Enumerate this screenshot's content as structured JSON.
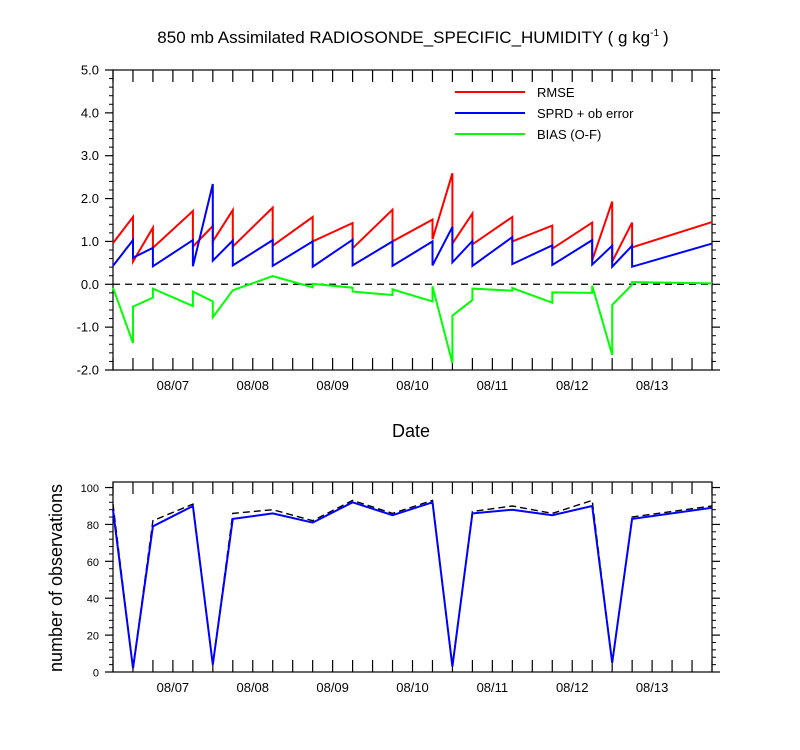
{
  "title": {
    "main": "850 mb Assimilated RADIOSONDE_SPECIFIC_HUMIDITY ( g kg",
    "exponent": "-1",
    "closing": ")"
  },
  "chart_data": [
    {
      "type": "line",
      "xlabel": "Date",
      "ylabel": "",
      "x_tick_labels": [
        "08/07",
        "08/08",
        "08/09",
        "08/10",
        "08/11",
        "08/12",
        "08/13"
      ],
      "x_tick_days": [
        7,
        8,
        9,
        10,
        11,
        12,
        13
      ],
      "xlim_days": [
        6.25,
        13.75
      ],
      "ylim": [
        -2.0,
        5.0
      ],
      "y_ticks": [
        -2.0,
        -1.0,
        0.0,
        1.0,
        2.0,
        3.0,
        4.0,
        5.0
      ],
      "y_tick_labels": [
        "-2.0",
        "-1.0",
        "0.0",
        "1.0",
        "2.0",
        "3.0",
        "4.0",
        "5.0"
      ],
      "zero_line": true,
      "legend_position": "top-right",
      "series": [
        {
          "name": "RMSE",
          "color": "#ff0000",
          "points": [
            [
              6.25,
              0.96
            ],
            [
              6.5,
              1.57
            ],
            [
              6.5,
              0.53
            ],
            [
              6.75,
              1.32
            ],
            [
              6.75,
              0.85
            ],
            [
              7.25,
              1.71
            ],
            [
              7.25,
              0.88
            ],
            [
              7.5,
              1.36
            ],
            [
              7.5,
              1.0
            ],
            [
              7.75,
              1.73
            ],
            [
              7.75,
              0.88
            ],
            [
              8.25,
              1.79
            ],
            [
              8.25,
              0.9
            ],
            [
              8.75,
              1.57
            ],
            [
              8.75,
              1.0
            ],
            [
              9.25,
              1.43
            ],
            [
              9.25,
              0.84
            ],
            [
              9.75,
              1.74
            ],
            [
              9.75,
              1.0
            ],
            [
              10.25,
              1.51
            ],
            [
              10.25,
              1.05
            ],
            [
              10.5,
              2.59
            ],
            [
              10.5,
              0.95
            ],
            [
              10.75,
              1.65
            ],
            [
              10.75,
              0.93
            ],
            [
              11.25,
              1.57
            ],
            [
              11.25,
              1.0
            ],
            [
              11.75,
              1.37
            ],
            [
              11.75,
              0.83
            ],
            [
              12.25,
              1.44
            ],
            [
              12.25,
              0.56
            ],
            [
              12.5,
              1.93
            ],
            [
              12.5,
              0.53
            ],
            [
              12.75,
              1.44
            ],
            [
              12.75,
              0.86
            ],
            [
              13.75,
              1.45
            ]
          ]
        },
        {
          "name": "SPRD + ob error",
          "color": "#0000ff",
          "points": [
            [
              6.25,
              0.43
            ],
            [
              6.5,
              1.03
            ],
            [
              6.5,
              0.62
            ],
            [
              6.75,
              0.85
            ],
            [
              6.75,
              0.42
            ],
            [
              7.25,
              1.03
            ],
            [
              7.25,
              0.42
            ],
            [
              7.5,
              2.34
            ],
            [
              7.5,
              0.55
            ],
            [
              7.75,
              1.02
            ],
            [
              7.75,
              0.44
            ],
            [
              8.25,
              1.03
            ],
            [
              8.25,
              0.43
            ],
            [
              8.75,
              1.0
            ],
            [
              8.75,
              0.41
            ],
            [
              9.25,
              1.04
            ],
            [
              9.25,
              0.44
            ],
            [
              9.75,
              1.0
            ],
            [
              9.75,
              0.43
            ],
            [
              10.25,
              1.0
            ],
            [
              10.25,
              0.44
            ],
            [
              10.5,
              1.34
            ],
            [
              10.5,
              0.51
            ],
            [
              10.75,
              1.01
            ],
            [
              10.75,
              0.43
            ],
            [
              11.25,
              1.1
            ],
            [
              11.25,
              0.47
            ],
            [
              11.75,
              0.91
            ],
            [
              11.75,
              0.45
            ],
            [
              12.25,
              1.03
            ],
            [
              12.25,
              0.46
            ],
            [
              12.5,
              0.9
            ],
            [
              12.5,
              0.41
            ],
            [
              12.75,
              0.9
            ],
            [
              12.75,
              0.41
            ],
            [
              13.75,
              0.95
            ]
          ]
        },
        {
          "name": "BIAS (O-F)",
          "color": "#00ff00",
          "points": [
            [
              6.25,
              -0.08
            ],
            [
              6.5,
              -1.37
            ],
            [
              6.5,
              -0.52
            ],
            [
              6.75,
              -0.31
            ],
            [
              6.75,
              -0.1
            ],
            [
              7.25,
              -0.51
            ],
            [
              7.25,
              -0.17
            ],
            [
              7.5,
              -0.4
            ],
            [
              7.5,
              -0.77
            ],
            [
              7.75,
              -0.14
            ],
            [
              8.25,
              0.19
            ],
            [
              8.75,
              -0.07
            ],
            [
              8.75,
              0.01
            ],
            [
              9.25,
              -0.08
            ],
            [
              9.25,
              -0.17
            ],
            [
              9.75,
              -0.25
            ],
            [
              9.75,
              -0.12
            ],
            [
              10.25,
              -0.4
            ],
            [
              10.25,
              -0.05
            ],
            [
              10.5,
              -1.84
            ],
            [
              10.5,
              -0.73
            ],
            [
              10.75,
              -0.37
            ],
            [
              10.75,
              -0.1
            ],
            [
              11.25,
              -0.15
            ],
            [
              11.25,
              -0.09
            ],
            [
              11.75,
              -0.43
            ],
            [
              11.75,
              -0.19
            ],
            [
              12.25,
              -0.2
            ],
            [
              12.25,
              -0.03
            ],
            [
              12.5,
              -1.65
            ],
            [
              12.5,
              -0.48
            ],
            [
              12.75,
              -0.01
            ],
            [
              12.75,
              0.05
            ],
            [
              13.75,
              0.02
            ]
          ]
        }
      ]
    },
    {
      "type": "line",
      "xlabel": "",
      "ylabel": "number of observations",
      "x_tick_labels": [
        "08/07",
        "08/08",
        "08/09",
        "08/10",
        "08/11",
        "08/12",
        "08/13"
      ],
      "x_tick_days": [
        7,
        8,
        9,
        10,
        11,
        12,
        13
      ],
      "xlim_days": [
        6.25,
        13.75
      ],
      "ylim": [
        0,
        103
      ],
      "y_ticks": [
        0,
        20,
        40,
        60,
        80,
        100
      ],
      "y_tick_labels": [
        "0",
        "20",
        "40",
        "60",
        "80",
        "100"
      ],
      "series": [
        {
          "style": "dashed",
          "color": "#000000",
          "points": [
            [
              6.25,
              91
            ],
            [
              6.5,
              2
            ],
            [
              6.75,
              82
            ],
            [
              7.25,
              91
            ],
            [
              7.5,
              4
            ],
            [
              7.75,
              86
            ],
            [
              8.25,
              88
            ],
            [
              8.75,
              82
            ],
            [
              9.25,
              93
            ],
            [
              9.75,
              86
            ],
            [
              10.25,
              93
            ],
            [
              10.5,
              3
            ],
            [
              10.75,
              87
            ],
            [
              11.25,
              90
            ],
            [
              11.75,
              86
            ],
            [
              12.25,
              93
            ],
            [
              12.5,
              5
            ],
            [
              12.75,
              84
            ],
            [
              13.75,
              90
            ]
          ]
        },
        {
          "color": "#0000ff",
          "points": [
            [
              6.25,
              88
            ],
            [
              6.5,
              2
            ],
            [
              6.75,
              79
            ],
            [
              7.25,
              90
            ],
            [
              7.5,
              4
            ],
            [
              7.75,
              83
            ],
            [
              8.25,
              86
            ],
            [
              8.75,
              81
            ],
            [
              9.25,
              92
            ],
            [
              9.75,
              85
            ],
            [
              10.25,
              92
            ],
            [
              10.5,
              3
            ],
            [
              10.75,
              86
            ],
            [
              11.25,
              88
            ],
            [
              11.75,
              85
            ],
            [
              12.25,
              90
            ],
            [
              12.5,
              5
            ],
            [
              12.75,
              83
            ],
            [
              13.75,
              89
            ]
          ]
        }
      ]
    }
  ]
}
